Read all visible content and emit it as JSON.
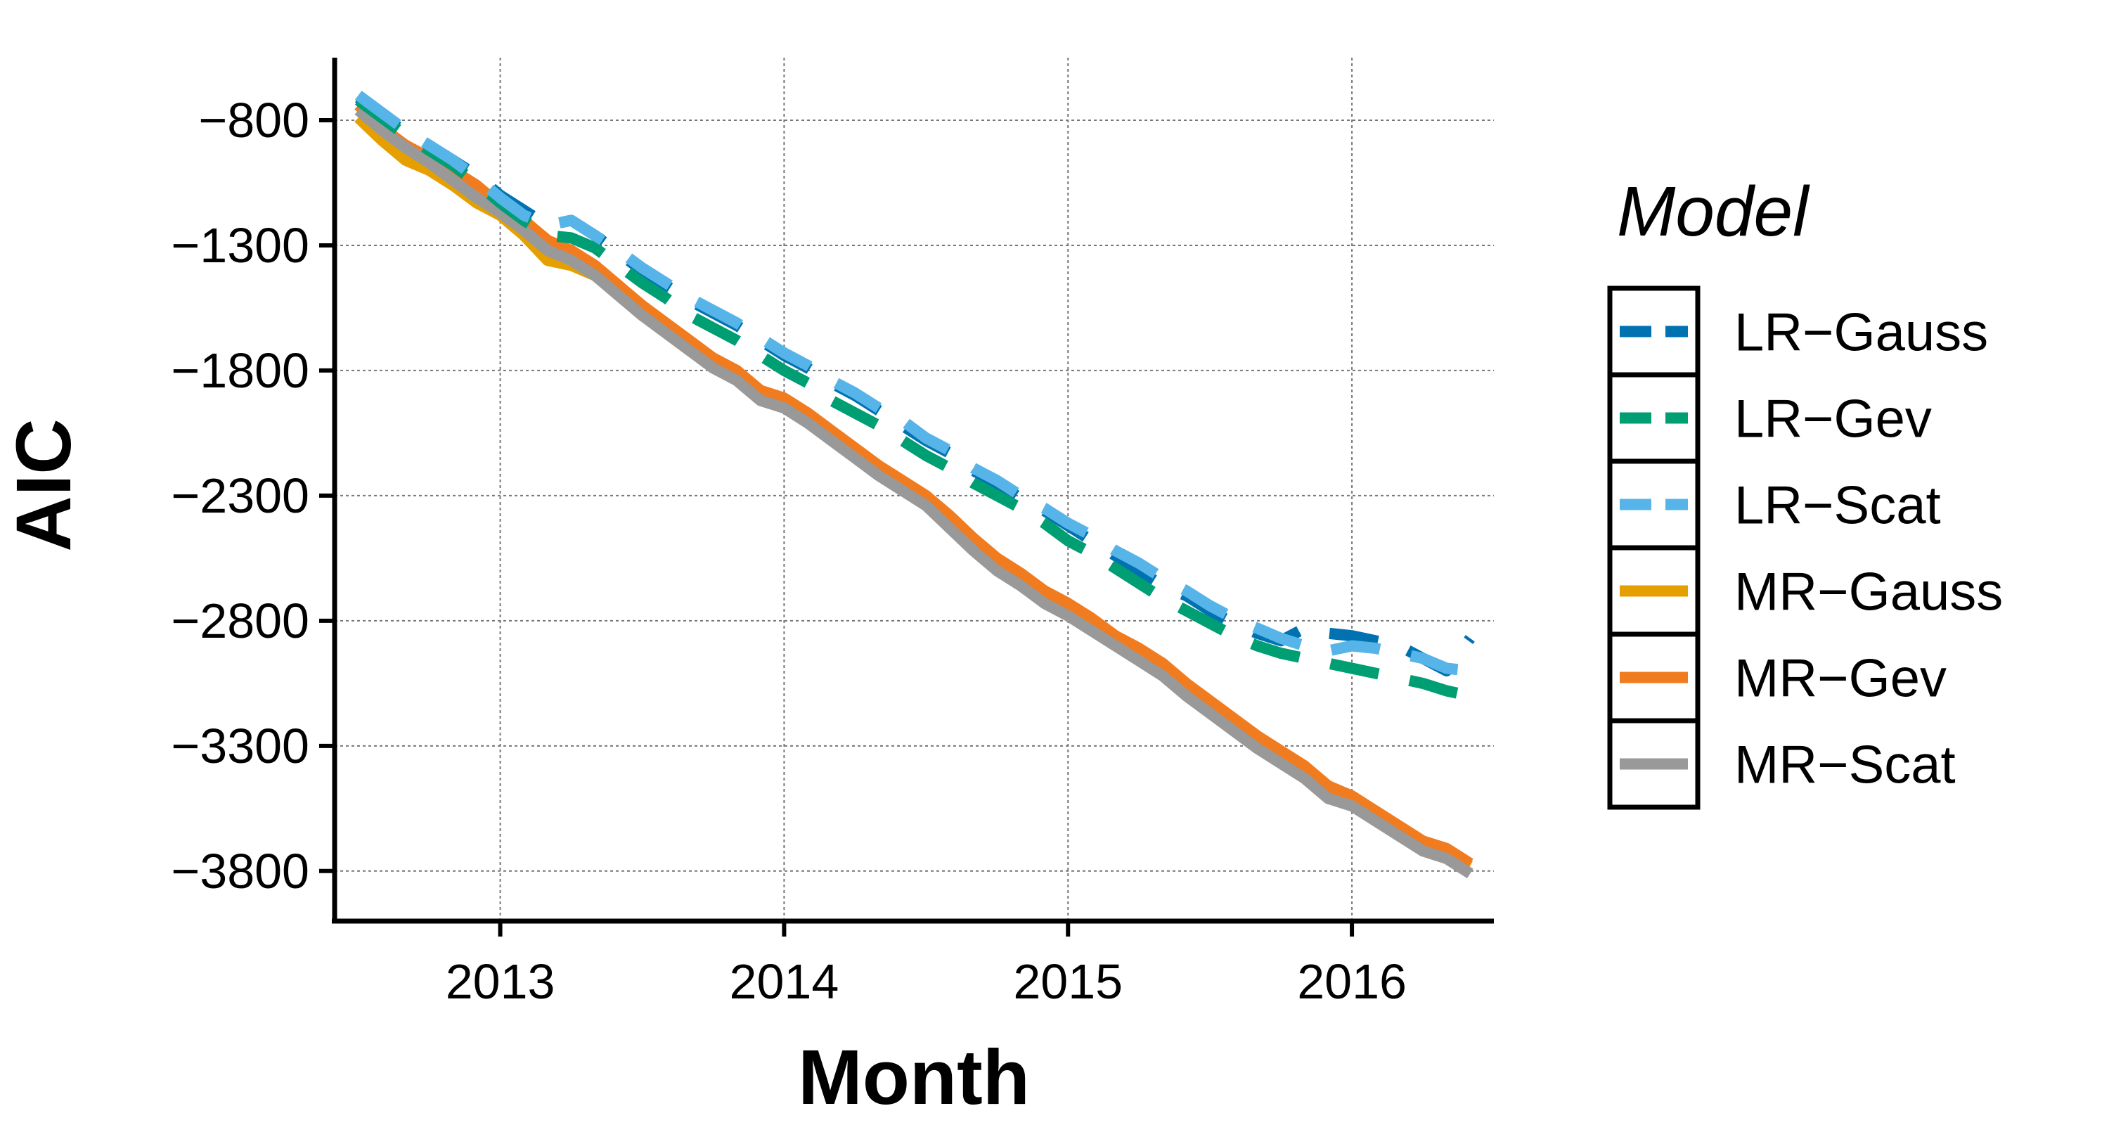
{
  "chart_data": {
    "type": "line",
    "xlabel": "Month",
    "ylabel": "AIC",
    "xlim": [
      "2012-06",
      "2016-07"
    ],
    "ylim": [
      -4000,
      -550
    ],
    "x_ticks": [
      "2013",
      "2014",
      "2015",
      "2016"
    ],
    "y_ticks": [
      -800,
      -1300,
      -1800,
      -2300,
      -2800,
      -3300,
      -3800
    ],
    "y_tick_labels": [
      "−800",
      "−1300",
      "−1800",
      "−2300",
      "−2800",
      "−3300",
      "−3800"
    ],
    "grid": true,
    "legend": {
      "title": "Model",
      "placement": "right"
    },
    "series": [
      {
        "name": "LR−Gauss",
        "color": "#0072B2",
        "dash": "dashed",
        "x": [
          "2012-07",
          "2012-08",
          "2012-09",
          "2012-10",
          "2012-11",
          "2012-12",
          "2013-01",
          "2013-02",
          "2013-03",
          "2013-04",
          "2013-05",
          "2013-06",
          "2013-07",
          "2013-08",
          "2013-09",
          "2013-10",
          "2013-11",
          "2013-12",
          "2014-01",
          "2014-02",
          "2014-03",
          "2014-04",
          "2014-05",
          "2014-06",
          "2014-07",
          "2014-08",
          "2014-09",
          "2014-10",
          "2014-11",
          "2014-12",
          "2015-01",
          "2015-02",
          "2015-03",
          "2015-04",
          "2015-05",
          "2015-06",
          "2015-07",
          "2015-08",
          "2015-09",
          "2015-10",
          "2015-11",
          "2015-12",
          "2016-01",
          "2016-02",
          "2016-03",
          "2016-04",
          "2016-05",
          "2016-06"
        ],
        "y": [
          -710,
          -780,
          -850,
          -900,
          -960,
          -1020,
          -1100,
          -1160,
          -1220,
          -1200,
          -1260,
          -1330,
          -1400,
          -1460,
          -1520,
          -1570,
          -1620,
          -1680,
          -1740,
          -1790,
          -1850,
          -1900,
          -1960,
          -2020,
          -2080,
          -2130,
          -2200,
          -2250,
          -2310,
          -2360,
          -2420,
          -2480,
          -2540,
          -2600,
          -2660,
          -2700,
          -2760,
          -2810,
          -2850,
          -2880,
          -2830,
          -2850,
          -2860,
          -2880,
          -2900,
          -2950,
          -3000,
          -2870
        ]
      },
      {
        "name": "LR−Gev",
        "color": "#009E73",
        "dash": "dashed",
        "x": [
          "2012-07",
          "2012-08",
          "2012-09",
          "2012-10",
          "2012-11",
          "2012-12",
          "2013-01",
          "2013-02",
          "2013-03",
          "2013-04",
          "2013-05",
          "2013-06",
          "2013-07",
          "2013-08",
          "2013-09",
          "2013-10",
          "2013-11",
          "2013-12",
          "2014-01",
          "2014-02",
          "2014-03",
          "2014-04",
          "2014-05",
          "2014-06",
          "2014-07",
          "2014-08",
          "2014-09",
          "2014-10",
          "2014-11",
          "2014-12",
          "2015-01",
          "2015-02",
          "2015-03",
          "2015-04",
          "2015-05",
          "2015-06",
          "2015-07",
          "2015-08",
          "2015-09",
          "2015-10",
          "2015-11",
          "2015-12",
          "2016-01",
          "2016-02",
          "2016-03",
          "2016-04",
          "2016-05",
          "2016-06"
        ],
        "y": [
          -720,
          -790,
          -860,
          -920,
          -980,
          -1050,
          -1130,
          -1200,
          -1260,
          -1270,
          -1310,
          -1380,
          -1450,
          -1510,
          -1580,
          -1630,
          -1680,
          -1740,
          -1800,
          -1850,
          -1920,
          -1970,
          -2020,
          -2080,
          -2140,
          -2190,
          -2250,
          -2300,
          -2350,
          -2410,
          -2480,
          -2530,
          -2590,
          -2650,
          -2710,
          -2760,
          -2810,
          -2860,
          -2900,
          -2930,
          -2950,
          -2970,
          -2990,
          -3010,
          -3030,
          -3050,
          -3080,
          -3100
        ]
      },
      {
        "name": "LR−Scat",
        "color": "#56B4E9",
        "dash": "dashed",
        "x": [
          "2012-07",
          "2012-08",
          "2012-09",
          "2012-10",
          "2012-11",
          "2012-12",
          "2013-01",
          "2013-02",
          "2013-03",
          "2013-04",
          "2013-05",
          "2013-06",
          "2013-07",
          "2013-08",
          "2013-09",
          "2013-10",
          "2013-11",
          "2013-12",
          "2014-01",
          "2014-02",
          "2014-03",
          "2014-04",
          "2014-05",
          "2014-06",
          "2014-07",
          "2014-08",
          "2014-09",
          "2014-10",
          "2014-11",
          "2014-12",
          "2015-01",
          "2015-02",
          "2015-03",
          "2015-04",
          "2015-05",
          "2015-06",
          "2015-07",
          "2015-08",
          "2015-09",
          "2015-10",
          "2015-11",
          "2015-12",
          "2016-01",
          "2016-02",
          "2016-03",
          "2016-04",
          "2016-05",
          "2016-06"
        ],
        "y": [
          -700,
          -770,
          -840,
          -900,
          -960,
          -1030,
          -1110,
          -1180,
          -1220,
          -1200,
          -1260,
          -1320,
          -1390,
          -1450,
          -1510,
          -1560,
          -1610,
          -1670,
          -1730,
          -1780,
          -1840,
          -1890,
          -1950,
          -2000,
          -2070,
          -2120,
          -2190,
          -2240,
          -2300,
          -2350,
          -2410,
          -2460,
          -2520,
          -2570,
          -2630,
          -2680,
          -2740,
          -2790,
          -2830,
          -2870,
          -2900,
          -2920,
          -2900,
          -2910,
          -2930,
          -2950,
          -2990,
          -3000
        ]
      },
      {
        "name": "MR−Gauss",
        "color": "#E69F00",
        "dash": "solid",
        "x": [
          "2012-07",
          "2012-08",
          "2012-09",
          "2012-10",
          "2012-11",
          "2012-12",
          "2013-01",
          "2013-02",
          "2013-03",
          "2013-04",
          "2013-05",
          "2013-06",
          "2013-07",
          "2013-08",
          "2013-09",
          "2013-10",
          "2013-11",
          "2013-12",
          "2014-01",
          "2014-02",
          "2014-03",
          "2014-04",
          "2014-05",
          "2014-06",
          "2014-07",
          "2014-08",
          "2014-09",
          "2014-10",
          "2014-11",
          "2014-12",
          "2015-01",
          "2015-02",
          "2015-03",
          "2015-04",
          "2015-05",
          "2015-06",
          "2015-07",
          "2015-08",
          "2015-09",
          "2015-10",
          "2015-11",
          "2015-12",
          "2016-01",
          "2016-02",
          "2016-03",
          "2016-04",
          "2016-05",
          "2016-06"
        ],
        "y": [
          -790,
          -880,
          -960,
          -1000,
          -1060,
          -1130,
          -1180,
          -1260,
          -1360,
          -1380,
          -1420,
          -1500,
          -1580,
          -1650,
          -1720,
          -1780,
          -1830,
          -1910,
          -1940,
          -2000,
          -2070,
          -2140,
          -2210,
          -2270,
          -2330,
          -2410,
          -2500,
          -2580,
          -2640,
          -2710,
          -2760,
          -2820,
          -2880,
          -2940,
          -3000,
          -3080,
          -3150,
          -3220,
          -3290,
          -3350,
          -3410,
          -3490,
          -3520,
          -3580,
          -3640,
          -3700,
          -3730,
          -3780
        ]
      },
      {
        "name": "MR−Gev",
        "color": "#F07C1F",
        "dash": "solid",
        "x": [
          "2012-07",
          "2012-08",
          "2012-09",
          "2012-10",
          "2012-11",
          "2012-12",
          "2013-01",
          "2013-02",
          "2013-03",
          "2013-04",
          "2013-05",
          "2013-06",
          "2013-07",
          "2013-08",
          "2013-09",
          "2013-10",
          "2013-11",
          "2013-12",
          "2014-01",
          "2014-02",
          "2014-03",
          "2014-04",
          "2014-05",
          "2014-06",
          "2014-07",
          "2014-08",
          "2014-09",
          "2014-10",
          "2014-11",
          "2014-12",
          "2015-01",
          "2015-02",
          "2015-03",
          "2015-04",
          "2015-05",
          "2015-06",
          "2015-07",
          "2015-08",
          "2015-09",
          "2015-10",
          "2015-11",
          "2015-12",
          "2016-01",
          "2016-02",
          "2016-03",
          "2016-04",
          "2016-05",
          "2016-06"
        ],
        "y": [
          -740,
          -830,
          -900,
          -950,
          -1000,
          -1060,
          -1140,
          -1200,
          -1280,
          -1320,
          -1380,
          -1460,
          -1540,
          -1610,
          -1680,
          -1750,
          -1800,
          -1880,
          -1910,
          -1970,
          -2040,
          -2110,
          -2180,
          -2240,
          -2300,
          -2380,
          -2470,
          -2550,
          -2610,
          -2680,
          -2730,
          -2790,
          -2860,
          -2910,
          -2970,
          -3050,
          -3120,
          -3190,
          -3260,
          -3320,
          -3380,
          -3460,
          -3500,
          -3560,
          -3620,
          -3680,
          -3710,
          -3770
        ]
      },
      {
        "name": "MR−Scat",
        "color": "#999999",
        "dash": "solid",
        "x": [
          "2012-07",
          "2012-08",
          "2012-09",
          "2012-10",
          "2012-11",
          "2012-12",
          "2013-01",
          "2013-02",
          "2013-03",
          "2013-04",
          "2013-05",
          "2013-06",
          "2013-07",
          "2013-08",
          "2013-09",
          "2013-10",
          "2013-11",
          "2013-12",
          "2014-01",
          "2014-02",
          "2014-03",
          "2014-04",
          "2014-05",
          "2014-06",
          "2014-07",
          "2014-08",
          "2014-09",
          "2014-10",
          "2014-11",
          "2014-12",
          "2015-01",
          "2015-02",
          "2015-03",
          "2015-04",
          "2015-05",
          "2015-06",
          "2015-07",
          "2015-08",
          "2015-09",
          "2015-10",
          "2015-11",
          "2015-12",
          "2016-01",
          "2016-02",
          "2016-03",
          "2016-04",
          "2016-05",
          "2016-06"
        ],
        "y": [
          -760,
          -840,
          -910,
          -970,
          -1040,
          -1110,
          -1170,
          -1240,
          -1320,
          -1360,
          -1420,
          -1500,
          -1580,
          -1650,
          -1720,
          -1790,
          -1840,
          -1920,
          -1950,
          -2010,
          -2080,
          -2150,
          -2220,
          -2280,
          -2340,
          -2430,
          -2520,
          -2600,
          -2660,
          -2730,
          -2780,
          -2840,
          -2900,
          -2960,
          -3020,
          -3100,
          -3170,
          -3240,
          -3310,
          -3370,
          -3430,
          -3510,
          -3540,
          -3600,
          -3660,
          -3720,
          -3750,
          -3810
        ]
      }
    ]
  }
}
